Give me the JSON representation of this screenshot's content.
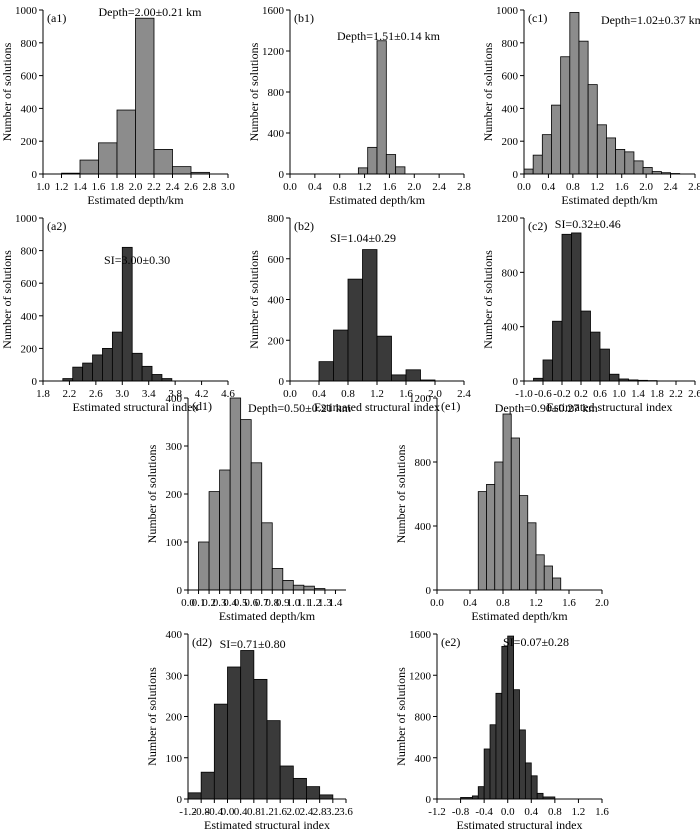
{
  "colors": {
    "gray_bar": "#8c8c8c",
    "dark_bar": "#3a3a3a",
    "axis": "#000000",
    "background": "#ffffff"
  },
  "chart_data": [
    {
      "id": "a1",
      "type": "bar",
      "panel_label": "(a1)",
      "annotation": "Depth=2.00±0.21 km",
      "xlabel": "Estimated depth/km",
      "ylabel": "Number of solutions",
      "xlim": [
        1.0,
        3.0
      ],
      "ylim": [
        0,
        1000
      ],
      "xticks": [
        "1.0",
        "1.2",
        "1.4",
        "1.6",
        "1.8",
        "2.0",
        "2.2",
        "2.4",
        "2.6",
        "2.8",
        "3.0"
      ],
      "yticks": [
        "0",
        "200",
        "400",
        "600",
        "800",
        "1000"
      ],
      "bin_edges": [
        1.2,
        1.4,
        1.6,
        1.8,
        2.0,
        2.2,
        2.4,
        2.6,
        2.8
      ],
      "values": [
        5,
        85,
        190,
        390,
        950,
        150,
        45,
        10
      ],
      "color": "gray"
    },
    {
      "id": "b1",
      "type": "bar",
      "panel_label": "(b1)",
      "annotation": "Depth=1.51±0.14 km",
      "xlabel": "Estimated depth/km",
      "ylabel": "Number of solutions",
      "xlim": [
        0.0,
        2.8
      ],
      "ylim": [
        0,
        1600
      ],
      "xticks": [
        "0.0",
        "0.4",
        "0.8",
        "1.2",
        "1.6",
        "2.0",
        "2.4",
        "2.8"
      ],
      "yticks": [
        "0",
        "400",
        "800",
        "1200",
        "1600"
      ],
      "bin_edges": [
        1.1,
        1.25,
        1.4,
        1.55,
        1.7,
        1.85
      ],
      "values": [
        60,
        260,
        1300,
        190,
        70
      ],
      "color": "gray"
    },
    {
      "id": "c1",
      "type": "bar",
      "panel_label": "(c1)",
      "annotation": "Depth=1.02±0.37 km",
      "xlabel": "Estimated depth/km",
      "ylabel": "Number of solutions",
      "xlim": [
        0.0,
        2.8
      ],
      "ylim": [
        0,
        1000
      ],
      "xticks": [
        "0.0",
        "0.4",
        "0.8",
        "1.2",
        "1.6",
        "2.0",
        "2.4",
        "2.8"
      ],
      "yticks": [
        "0",
        "200",
        "400",
        "600",
        "800",
        "1000"
      ],
      "bin_edges": [
        0.0,
        0.15,
        0.3,
        0.45,
        0.6,
        0.75,
        0.9,
        1.05,
        1.2,
        1.35,
        1.5,
        1.65,
        1.8,
        1.95,
        2.1,
        2.25,
        2.4,
        2.55
      ],
      "values": [
        30,
        115,
        240,
        420,
        715,
        985,
        810,
        545,
        300,
        220,
        150,
        135,
        80,
        40,
        15,
        8,
        3
      ],
      "color": "gray"
    },
    {
      "id": "a2",
      "type": "bar",
      "panel_label": "(a2)",
      "annotation": "SI=3.00±0.30",
      "xlabel": "Estimated structural index",
      "ylabel": "Number of solutions",
      "xlim": [
        1.8,
        4.6
      ],
      "ylim": [
        0,
        1000
      ],
      "xticks": [
        "1.8",
        "2.2",
        "2.6",
        "3.0",
        "3.4",
        "3.8",
        "4.2",
        "4.6"
      ],
      "yticks": [
        "0",
        "200",
        "400",
        "600",
        "800",
        "1000"
      ],
      "bin_edges": [
        2.1,
        2.25,
        2.4,
        2.55,
        2.7,
        2.85,
        3.0,
        3.15,
        3.3,
        3.45,
        3.6,
        3.75
      ],
      "values": [
        15,
        85,
        110,
        160,
        200,
        300,
        820,
        170,
        90,
        40,
        15
      ],
      "color": "dark"
    },
    {
      "id": "b2",
      "type": "bar",
      "panel_label": "(b2)",
      "annotation": "SI=1.04±0.29",
      "xlabel": "Estimated structural index",
      "ylabel": "Number of solutions",
      "xlim": [
        0.0,
        2.4
      ],
      "ylim": [
        0,
        800
      ],
      "xticks": [
        "0.0",
        "0.4",
        "0.8",
        "1.2",
        "1.6",
        "2.0",
        "2.4"
      ],
      "yticks": [
        "0",
        "200",
        "400",
        "600",
        "800"
      ],
      "bin_edges": [
        0.4,
        0.6,
        0.8,
        1.0,
        1.2,
        1.4,
        1.6,
        1.8,
        2.0
      ],
      "values": [
        95,
        250,
        500,
        645,
        220,
        30,
        55,
        5
      ],
      "color": "dark"
    },
    {
      "id": "c2",
      "type": "bar",
      "panel_label": "(c2)",
      "annotation": "SI=0.32±0.46",
      "xlabel": "Estimated structural index",
      "ylabel": "Number of solutions",
      "xlim": [
        -1.0,
        2.6
      ],
      "ylim": [
        0,
        1200
      ],
      "xticks": [
        "-1.0",
        "-0.6",
        "-0.2",
        "0.2",
        "0.6",
        "1.0",
        "1.4",
        "1.8",
        "2.2",
        "2.6"
      ],
      "yticks": [
        "0",
        "400",
        "800",
        "1200"
      ],
      "bin_edges": [
        -0.8,
        -0.6,
        -0.4,
        -0.2,
        0.0,
        0.2,
        0.4,
        0.6,
        0.8,
        1.0,
        1.2,
        1.4,
        1.6,
        1.8
      ],
      "values": [
        20,
        155,
        440,
        1080,
        1090,
        515,
        360,
        235,
        50,
        15,
        8,
        5,
        3
      ],
      "color": "dark"
    },
    {
      "id": "d1",
      "type": "bar",
      "panel_label": "(d1)",
      "annotation": "Depth=0.50±0.21 km",
      "xlabel": "Estimated depth/km",
      "ylabel": "Number of solutions",
      "xlim": [
        0.0,
        1.5
      ],
      "ylim": [
        0,
        400
      ],
      "xticks": [
        "0.0",
        "0.1",
        "0.2",
        "0.3",
        "0.4",
        "0.5",
        "0.6",
        "0.7",
        "0.8",
        "0.9",
        "1.0",
        "1.1",
        "1.2",
        "1.3",
        "1.4"
      ],
      "yticks": [
        "0",
        "100",
        "200",
        "300",
        "400"
      ],
      "bin_edges": [
        0.1,
        0.2,
        0.3,
        0.4,
        0.5,
        0.6,
        0.7,
        0.8,
        0.9,
        1.0,
        1.1,
        1.2,
        1.3
      ],
      "values": [
        100,
        205,
        250,
        400,
        355,
        265,
        140,
        45,
        20,
        10,
        8,
        3
      ],
      "color": "gray"
    },
    {
      "id": "e1",
      "type": "bar",
      "panel_label": "(e1)",
      "annotation": "Depth=0.90±0.27 km",
      "xlabel": "Estimated depth/km",
      "ylabel": "Number of solutions",
      "xlim": [
        0.0,
        2.0
      ],
      "ylim": [
        0,
        1200
      ],
      "xticks": [
        "0.0",
        "0.4",
        "0.8",
        "1.2",
        "1.6",
        "2.0"
      ],
      "yticks": [
        "0",
        "400",
        "800",
        "1200"
      ],
      "bin_edges": [
        0.5,
        0.6,
        0.7,
        0.8,
        0.9,
        1.0,
        1.1,
        1.2,
        1.3,
        1.4,
        1.5
      ],
      "values": [
        615,
        660,
        800,
        1100,
        950,
        590,
        420,
        220,
        150,
        75
      ],
      "color": "gray"
    },
    {
      "id": "d2",
      "type": "bar",
      "panel_label": "(d2)",
      "annotation": "SI=0.71±0.80",
      "xlabel": "Estimated structural index",
      "ylabel": "Number of solutions",
      "xlim": [
        -1.2,
        3.6
      ],
      "ylim": [
        0,
        400
      ],
      "xticks": [
        "-1.2",
        "-0.8",
        "-0.4",
        "0.0",
        "0.4",
        "0.8",
        "1.2",
        "1.6",
        "2.0",
        "2.4",
        "2.8",
        "3.2",
        "3.6"
      ],
      "yticks": [
        "0",
        "100",
        "200",
        "300",
        "400"
      ],
      "bin_edges": [
        -1.2,
        -0.8,
        -0.4,
        0.0,
        0.4,
        0.8,
        1.2,
        1.6,
        2.0,
        2.4,
        2.8,
        3.2
      ],
      "values": [
        15,
        65,
        230,
        320,
        360,
        290,
        190,
        80,
        50,
        30,
        10
      ],
      "color": "dark"
    },
    {
      "id": "e2",
      "type": "bar",
      "panel_label": "(e2)",
      "annotation": "SI=0.07±0.28",
      "xlabel": "Estimated structural index",
      "ylabel": "Number of solutions",
      "xlim": [
        -1.2,
        1.6
      ],
      "ylim": [
        0,
        1600
      ],
      "xticks": [
        "-1.2",
        "-0.8",
        "-0.4",
        "0.0",
        "0.4",
        "0.8",
        "1.2",
        "1.6"
      ],
      "yticks": [
        "0",
        "400",
        "800",
        "1200",
        "1600"
      ],
      "bin_edges": [
        -0.8,
        -0.6,
        -0.5,
        -0.4,
        -0.3,
        -0.2,
        -0.1,
        0.0,
        0.1,
        0.2,
        0.3,
        0.4,
        0.5,
        0.6,
        0.8
      ],
      "values": [
        15,
        30,
        120,
        485,
        720,
        1025,
        1480,
        1580,
        1060,
        670,
        350,
        225,
        55,
        20
      ],
      "color": "dark"
    }
  ]
}
